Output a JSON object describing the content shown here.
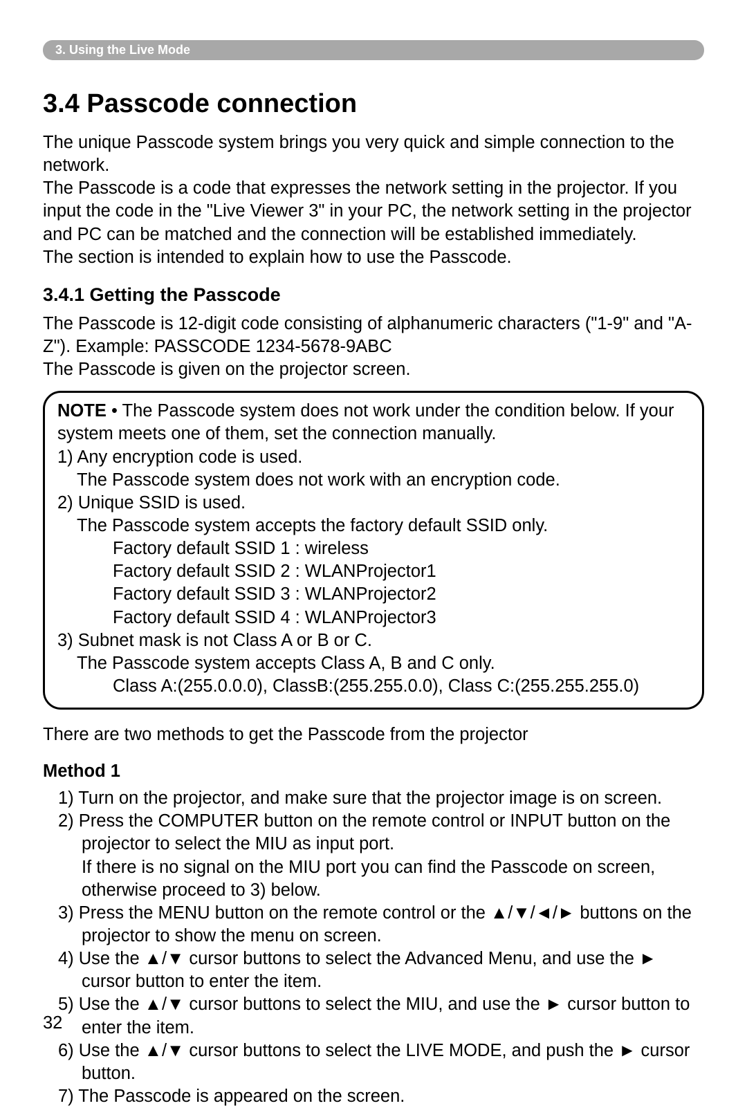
{
  "banner": {
    "text": "3. Using the Live Mode"
  },
  "title": "3.4 Passcode connection",
  "intro": {
    "p1": "The unique Passcode system brings you very quick and simple connection to the network.",
    "p2": "The Passcode is a code that expresses the network setting in the projector. If you input the code in the \"Live Viewer 3\" in your PC, the network setting in the projector and PC can be matched and the connection will be established immediately.",
    "p3": "The section is intended to explain how to use the Passcode."
  },
  "section": {
    "heading": "3.4.1 Getting the Passcode",
    "p1": "The Passcode is 12-digit code consisting of alphanumeric characters (\"1-9\" and \"A-Z\"). Example: PASSCODE 1234-5678-9ABC",
    "p2": "The Passcode is given on the projector screen."
  },
  "note": {
    "label": "NOTE",
    "lead": "• The Passcode system does not work under the condition below. If your system meets one of them, set the connection manually.",
    "i1": "1) Any encryption code is used.",
    "i1a": "The Passcode system does not work with an encryption code.",
    "i2": "2) Unique SSID is used.",
    "i2a": "The Passcode system accepts the factory default SSID only.",
    "s1": "Factory default SSID 1 : wireless",
    "s2": "Factory default SSID 2 : WLANProjector1",
    "s3": "Factory default SSID 3 : WLANProjector2",
    "s4": "Factory default SSID 4 : WLANProjector3",
    "i3": "3) Subnet mask is not Class A or B or C.",
    "i3a": "The Passcode system accepts Class A, B and C only.",
    "i3b": "Class A:(255.0.0.0), ClassB:(255.255.0.0), Class C:(255.255.255.0)"
  },
  "methods_intro": "There are two methods to get the Passcode from the projector",
  "method1": {
    "title": "Method 1",
    "s1": "1) Turn on the projector, and make sure that the projector image is on screen.",
    "s2": "2) Press the COMPUTER button on the remote control or INPUT button on the projector to select the MIU as input port.",
    "s2b": "If there is no signal on the MIU port you can find the Passcode on screen, otherwise proceed to 3) below.",
    "s3": "3) Press the MENU button on the remote control or the ▲/▼/◄/► buttons on the projector to show the menu on screen.",
    "s4": "4) Use the ▲/▼ cursor buttons to select the Advanced Menu, and use the ► cursor button to enter the item.",
    "s5": "5) Use the ▲/▼ cursor buttons to select the MIU, and use the ► cursor button to enter the item.",
    "s6": "6) Use the ▲/▼ cursor buttons to select the LIVE MODE, and push the ► cursor button.",
    "s7": "7) The Passcode is appeared on the screen."
  },
  "page_number": "32"
}
